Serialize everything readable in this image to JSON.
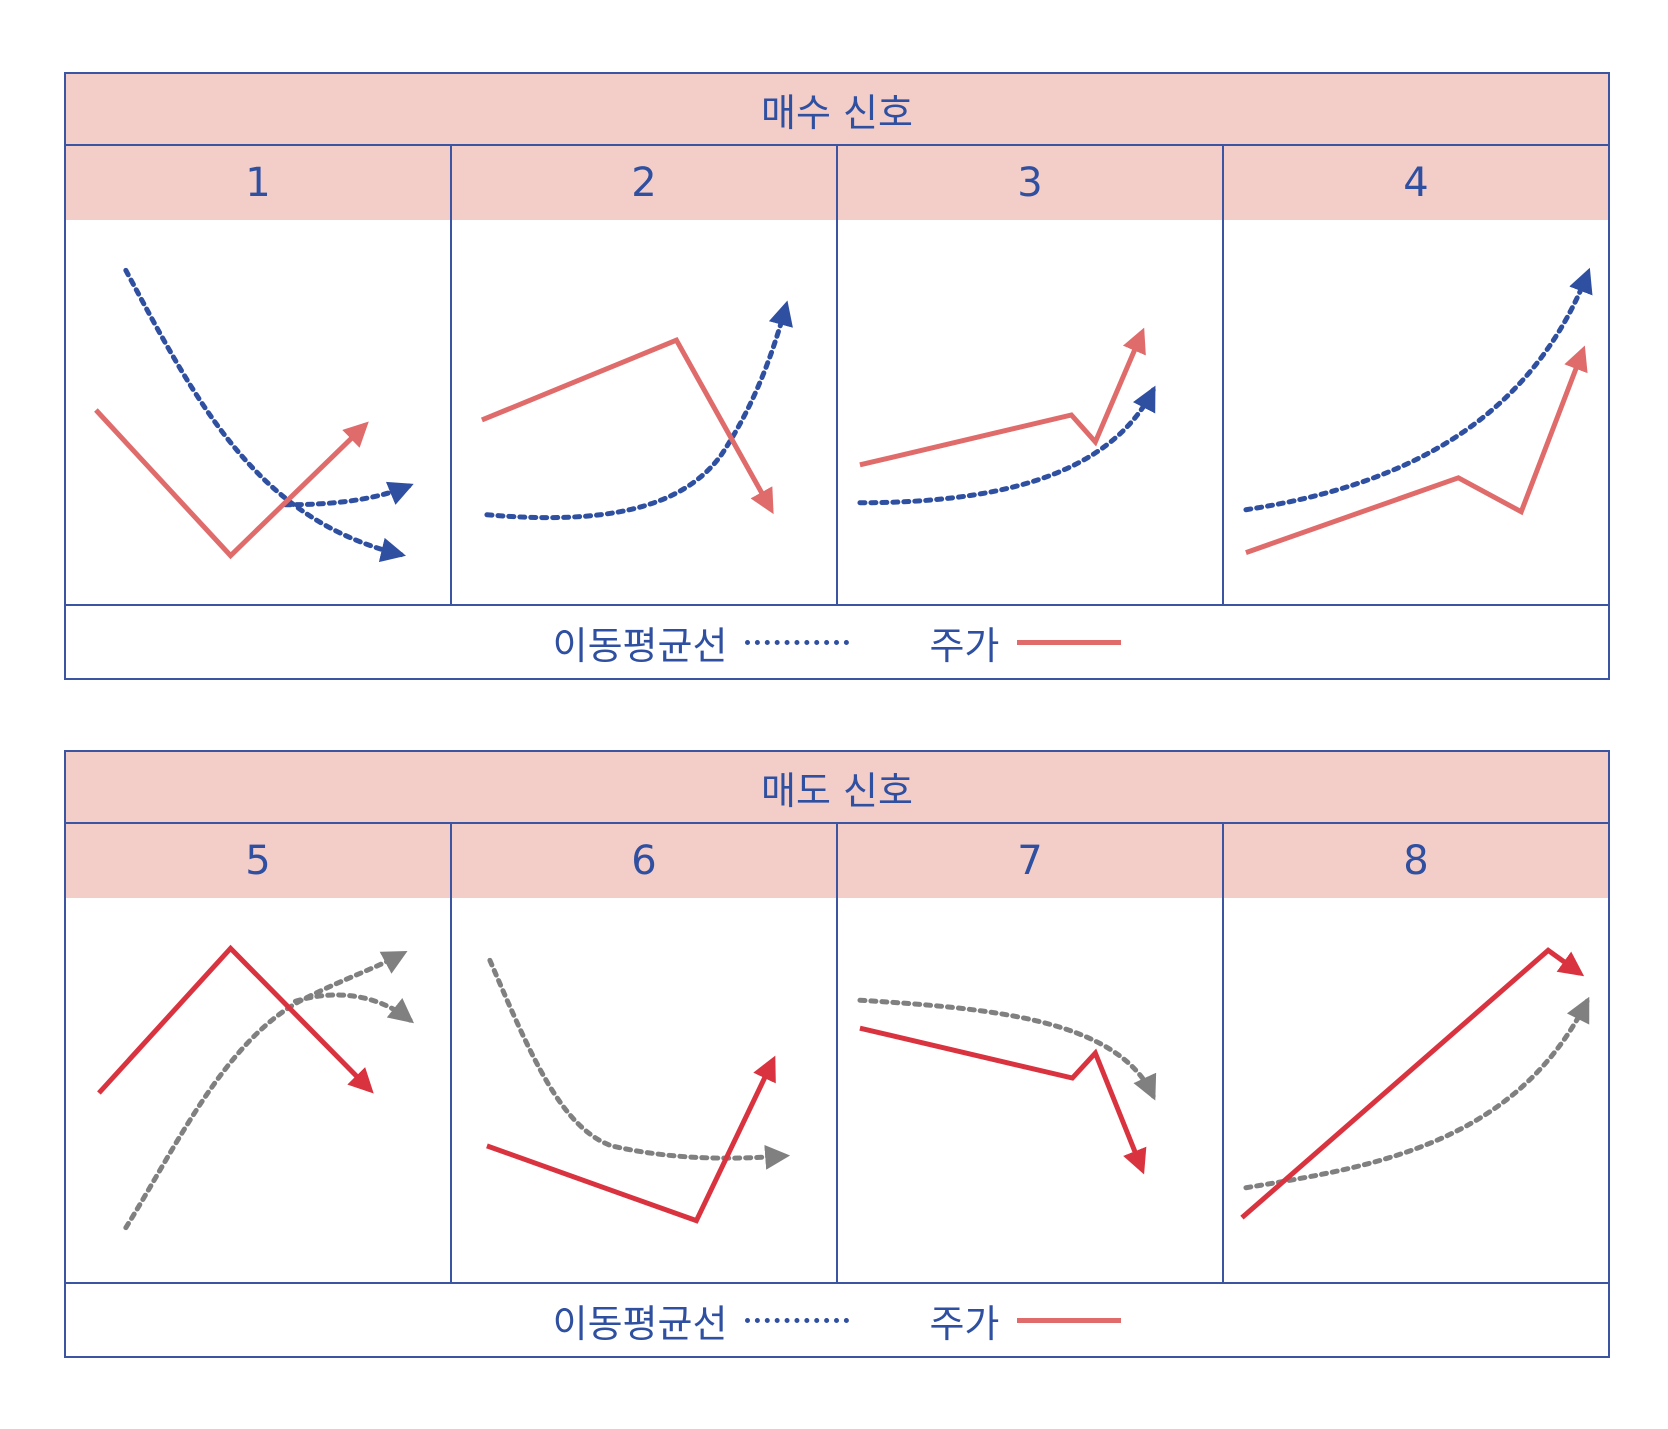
{
  "buy": {
    "title": "매수 신호",
    "cells": [
      {
        "label": "1"
      },
      {
        "label": "2"
      },
      {
        "label": "3"
      },
      {
        "label": "4"
      }
    ],
    "legend": {
      "ma_label": "이동평균선",
      "price_label": "주가"
    }
  },
  "sell": {
    "title": "매도 신호",
    "cells": [
      {
        "label": "5"
      },
      {
        "label": "6"
      },
      {
        "label": "7"
      },
      {
        "label": "8"
      }
    ],
    "legend": {
      "ma_label": "이동평균선",
      "price_label": "주가"
    }
  },
  "colors": {
    "header_fill": "#f3cdc7",
    "border": "#3b55a3",
    "buy_ma": "#2f4fa0",
    "buy_price": "#e06b6b",
    "sell_ma": "#808080",
    "sell_price": "#d9333f",
    "text": "#2f4fa0"
  }
}
